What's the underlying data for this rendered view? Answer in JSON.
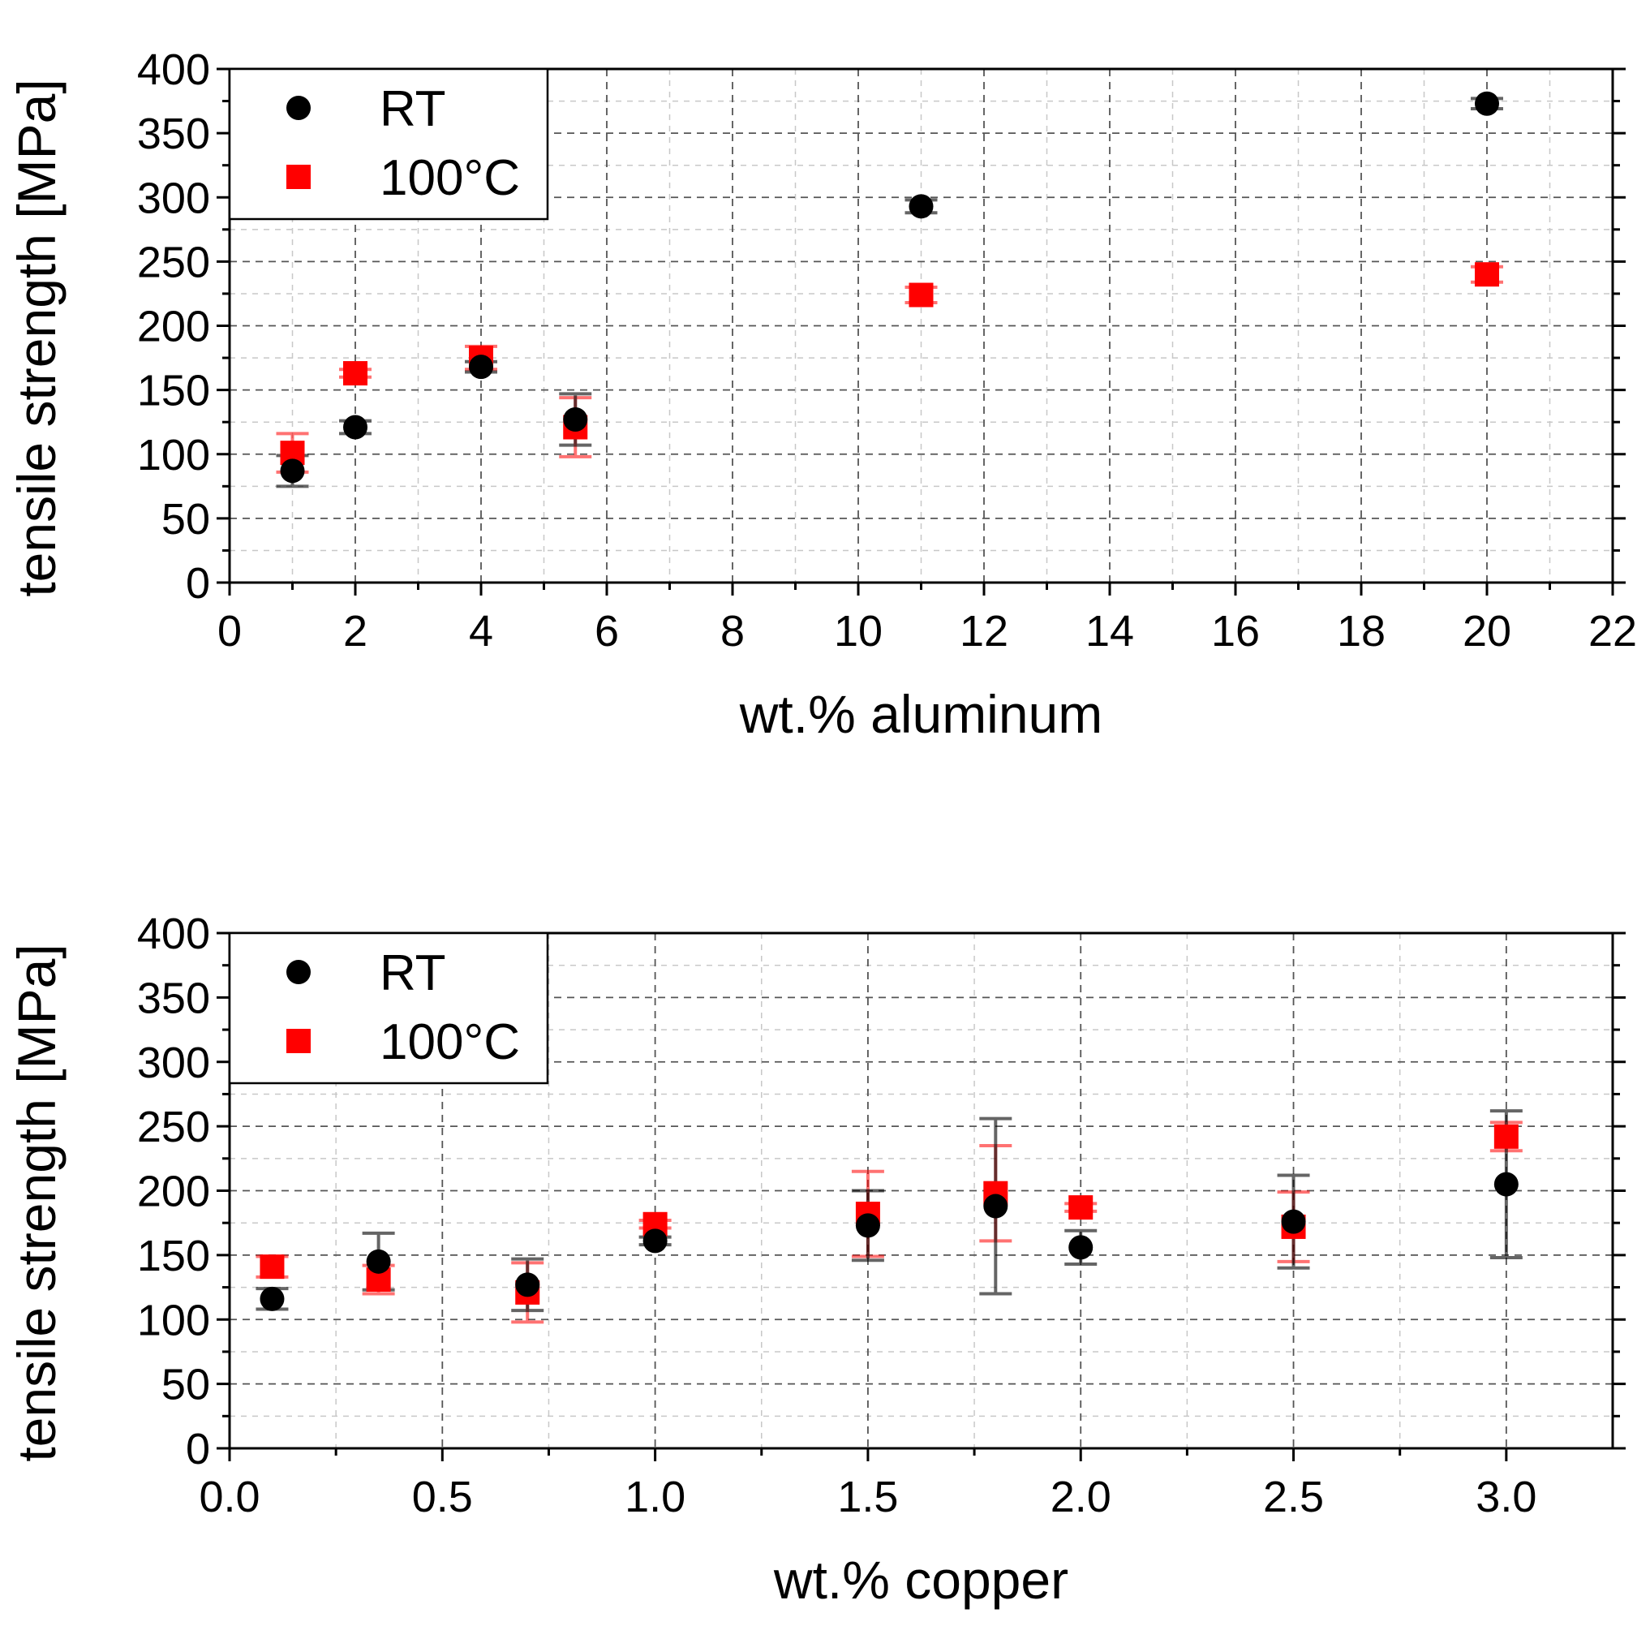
{
  "chart_data": [
    {
      "type": "scatter",
      "id": "aluminum",
      "xlabel": "wt.% aluminum",
      "ylabel": "tensile strength [MPa]",
      "xlim": [
        0,
        22
      ],
      "ylim": [
        0,
        400
      ],
      "xticks": [
        0,
        2,
        4,
        6,
        8,
        10,
        12,
        14,
        16,
        18,
        20,
        22
      ],
      "xtick_labels": [
        "0",
        "2",
        "4",
        "6",
        "8",
        "10",
        "12",
        "14",
        "16",
        "18",
        "20",
        "22"
      ],
      "yticks": [
        0,
        50,
        100,
        150,
        200,
        250,
        300,
        350,
        400
      ],
      "ytick_labels": [
        "0",
        "50",
        "100",
        "150",
        "200",
        "250",
        "300",
        "350",
        "400"
      ],
      "grid": true,
      "legend_position": "top-left",
      "series": [
        {
          "name": "RT",
          "marker": "circle",
          "color": "#000000",
          "points": [
            {
              "x": 1,
              "y": 87,
              "err": 12
            },
            {
              "x": 2,
              "y": 121,
              "err": 5
            },
            {
              "x": 4,
              "y": 168,
              "err": 4
            },
            {
              "x": 5.5,
              "y": 127,
              "err": 20
            },
            {
              "x": 11,
              "y": 293,
              "err": 5
            },
            {
              "x": 20,
              "y": 373,
              "err": 4
            }
          ]
        },
        {
          "name": "100°C",
          "marker": "square",
          "color": "#ff0000",
          "points": [
            {
              "x": 1,
              "y": 101,
              "err": 15
            },
            {
              "x": 2,
              "y": 163,
              "err": 3
            },
            {
              "x": 4,
              "y": 175,
              "err": 9
            },
            {
              "x": 5.5,
              "y": 121,
              "err": 23
            },
            {
              "x": 11,
              "y": 224,
              "err": 6
            },
            {
              "x": 20,
              "y": 240,
              "err": 6
            }
          ]
        }
      ]
    },
    {
      "type": "scatter",
      "id": "copper",
      "xlabel": "wt.% copper",
      "ylabel": "tensile strength [MPa]",
      "xlim": [
        0,
        3.25
      ],
      "ylim": [
        0,
        400
      ],
      "xticks": [
        0,
        0.5,
        1.0,
        1.5,
        2.0,
        2.5,
        3.0
      ],
      "xtick_labels": [
        "0.0",
        "0.5",
        "1.0",
        "1.5",
        "2.0",
        "2.5",
        "3.0"
      ],
      "yticks": [
        0,
        50,
        100,
        150,
        200,
        250,
        300,
        350,
        400
      ],
      "ytick_labels": [
        "0",
        "50",
        "100",
        "150",
        "200",
        "250",
        "300",
        "350",
        "400"
      ],
      "grid": true,
      "legend_position": "top-left",
      "series": [
        {
          "name": "RT",
          "marker": "circle",
          "color": "#000000",
          "points": [
            {
              "x": 0.1,
              "y": 116,
              "err": 8
            },
            {
              "x": 0.35,
              "y": 145,
              "err": 22
            },
            {
              "x": 0.7,
              "y": 127,
              "err": 20
            },
            {
              "x": 1.0,
              "y": 161,
              "err": 3
            },
            {
              "x": 1.5,
              "y": 173,
              "err": 27
            },
            {
              "x": 1.8,
              "y": 188,
              "err": 68
            },
            {
              "x": 2.0,
              "y": 156,
              "err": 13
            },
            {
              "x": 2.5,
              "y": 176,
              "err": 36
            },
            {
              "x": 3.0,
              "y": 205,
              "err": 57
            }
          ]
        },
        {
          "name": "100°C",
          "marker": "square",
          "color": "#ff0000",
          "points": [
            {
              "x": 0.1,
              "y": 141,
              "err": 8
            },
            {
              "x": 0.35,
              "y": 131,
              "err": 11
            },
            {
              "x": 0.7,
              "y": 121,
              "err": 23
            },
            {
              "x": 1.0,
              "y": 174,
              "err": 3
            },
            {
              "x": 1.5,
              "y": 182,
              "err": 33
            },
            {
              "x": 1.8,
              "y": 198,
              "err": 37
            },
            {
              "x": 2.0,
              "y": 187,
              "err": 3
            },
            {
              "x": 2.5,
              "y": 172,
              "err": 27
            },
            {
              "x": 3.0,
              "y": 242,
              "err": 11
            }
          ]
        }
      ]
    }
  ]
}
